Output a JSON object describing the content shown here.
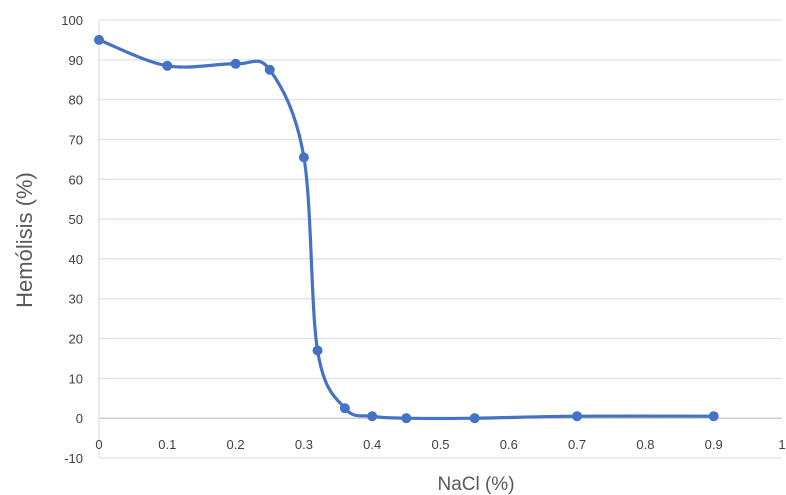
{
  "chart_data": {
    "type": "scatter",
    "title": "",
    "xlabel": "NaCl (%)",
    "ylabel": "Hemólisis (%)",
    "xlim": [
      0,
      1
    ],
    "ylim": [
      -10,
      100
    ],
    "x_ticks": [
      0,
      0.1,
      0.2,
      0.3,
      0.4,
      0.5,
      0.6,
      0.7,
      0.8,
      0.9,
      1
    ],
    "x_tick_labels": [
      "0",
      "0.1",
      "0.2",
      "0.3",
      "0.4",
      "0.5",
      "0.6",
      "0.7",
      "0.8",
      "0.9",
      "1"
    ],
    "y_ticks": [
      -10,
      0,
      10,
      20,
      30,
      40,
      50,
      60,
      70,
      80,
      90,
      100
    ],
    "y_tick_labels": [
      "-10",
      "0",
      "10",
      "20",
      "30",
      "40",
      "50",
      "60",
      "70",
      "80",
      "90",
      "100"
    ],
    "grid": true,
    "smooth_line": true,
    "series_color": "#4472C4",
    "grid_color": "#D9E2F3",
    "points": [
      {
        "x": 0,
        "y": 95
      },
      {
        "x": 0.1,
        "y": 88.5
      },
      {
        "x": 0.2,
        "y": 89
      },
      {
        "x": 0.25,
        "y": 87.5
      },
      {
        "x": 0.3,
        "y": 65.5
      },
      {
        "x": 0.32,
        "y": 17
      },
      {
        "x": 0.36,
        "y": 2.5
      },
      {
        "x": 0.4,
        "y": 0.5
      },
      {
        "x": 0.45,
        "y": 0
      },
      {
        "x": 0.55,
        "y": 0
      },
      {
        "x": 0.7,
        "y": 0.5
      },
      {
        "x": 0.9,
        "y": 0.5
      }
    ]
  }
}
